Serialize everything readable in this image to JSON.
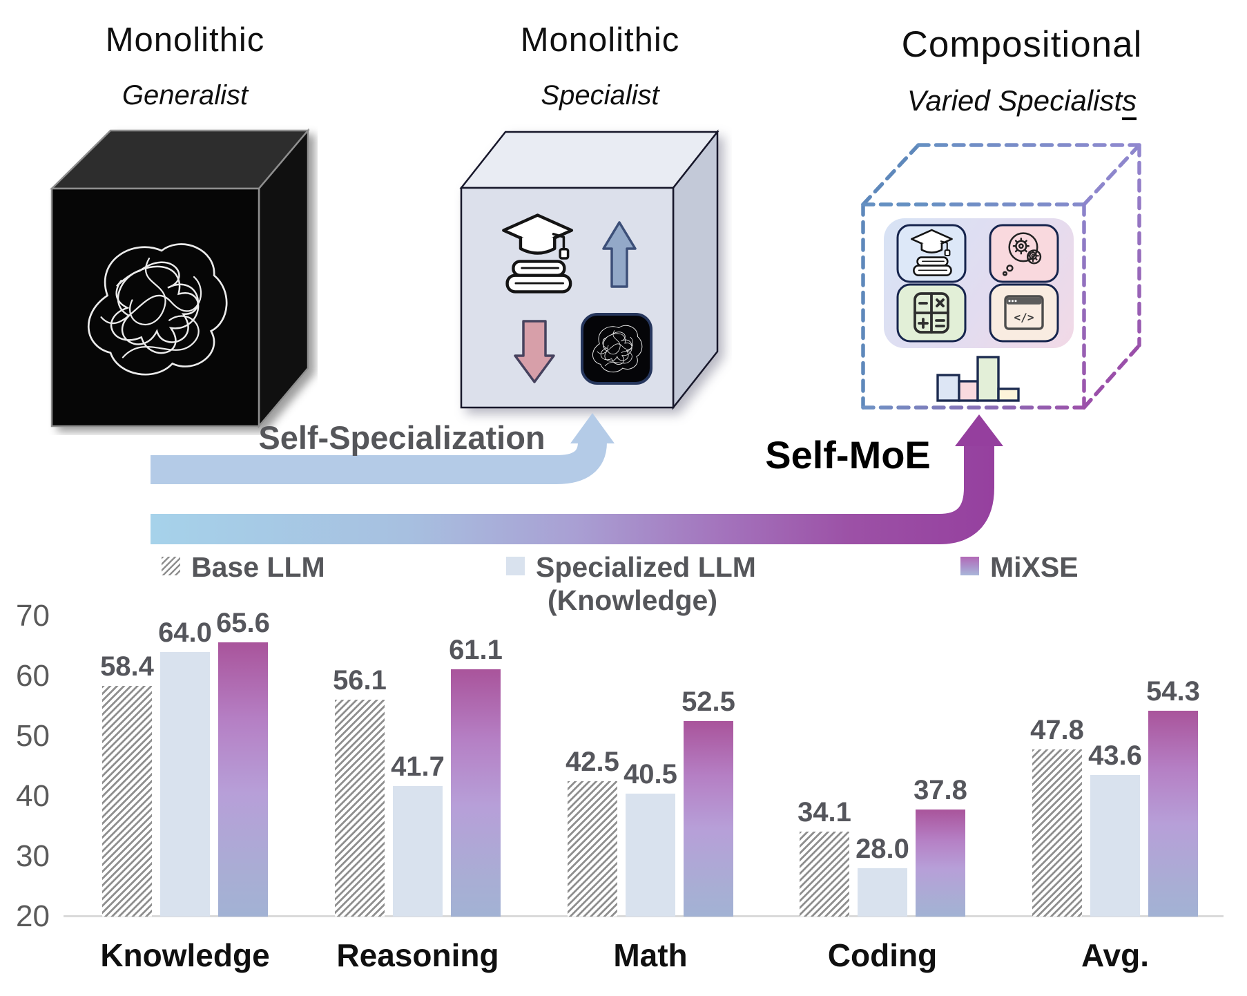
{
  "figure": {
    "columns": [
      {
        "title": "Monolithic",
        "subtitle": "Generalist",
        "cube": "black-generalist-tangle"
      },
      {
        "title": "Monolithic",
        "subtitle": "Specialist",
        "cube": "gray-specialist"
      },
      {
        "title": "Compositional",
        "subtitle_main": "Varied Specialist",
        "subtitle_underlined": "s",
        "cube": "dashed-compositional",
        "tiles": [
          "knowledge",
          "reasoning",
          "math",
          "coding"
        ]
      }
    ],
    "arrows": [
      {
        "label": "Self-Specialization",
        "style": "light-blue"
      },
      {
        "label": "Self-MoE",
        "style": "blue-to-purple-gradient"
      }
    ],
    "accent_colors": {
      "arrow_blue": "#b4cbe7",
      "arrow_gradient_start": "#a6d2ea",
      "arrow_gradient_end": "#953f9e",
      "dashed_cube_blue": "#5e88bb",
      "dashed_cube_purple": "#9a55ad"
    }
  },
  "legend": [
    {
      "label": "Base LLM",
      "swatch": "hatch"
    },
    {
      "label": "Specialized LLM",
      "label_line2": "(Knowledge)",
      "swatch": "solid",
      "color": "#d9e2ee"
    },
    {
      "label": "MiXSE",
      "swatch": "gradient",
      "color_top": "#a9549b",
      "color_bottom": "#a2b2d4"
    }
  ],
  "chart_data": {
    "type": "bar",
    "categories": [
      "Knowledge",
      "Reasoning",
      "Math",
      "Coding",
      "Avg."
    ],
    "series": [
      {
        "name": "Base LLM",
        "values": [
          58.4,
          56.1,
          42.5,
          34.1,
          47.8
        ]
      },
      {
        "name": "Specialized LLM (Knowledge)",
        "values": [
          64.0,
          41.7,
          40.5,
          28.0,
          43.6
        ]
      },
      {
        "name": "MiXSE",
        "values": [
          65.6,
          61.1,
          52.5,
          37.8,
          54.3
        ]
      }
    ],
    "ylim": [
      20,
      70
    ],
    "yticks": [
      20,
      30,
      40,
      50,
      60,
      70
    ],
    "grid": false,
    "value_labels": true,
    "legend_position": "top",
    "colors": {
      "base_hatch": "#8f8f8f",
      "specialized": "#d9e2ee",
      "mixse_top": "#a9549b",
      "mixse_mid": "#b79fd8",
      "mixse_bottom": "#a2b2d4"
    }
  }
}
